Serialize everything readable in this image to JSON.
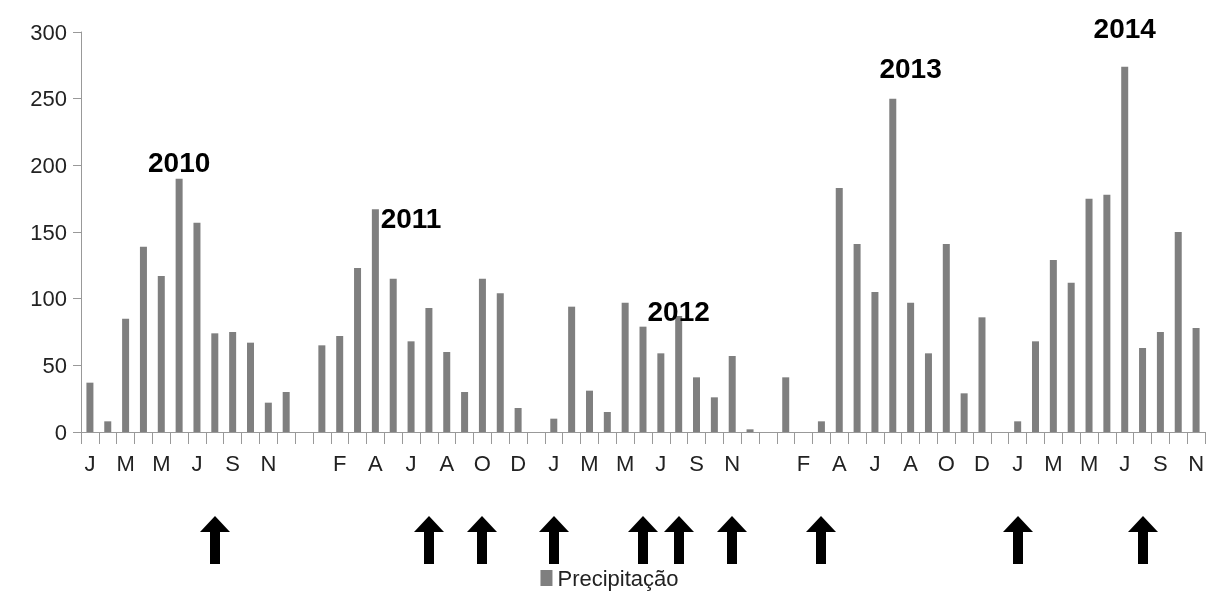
{
  "chart_data": {
    "type": "bar",
    "categories": [
      "J",
      null,
      "M",
      null,
      "M",
      null,
      "J",
      null,
      "S",
      null,
      "N",
      null,
      null,
      null,
      "F",
      null,
      "A",
      null,
      "J",
      null,
      "A",
      null,
      "O",
      null,
      "D",
      null,
      "J",
      null,
      "M",
      null,
      "M",
      null,
      "J",
      null,
      "S",
      null,
      "N",
      null,
      null,
      null,
      "F",
      null,
      "A",
      null,
      "J",
      null,
      "A",
      null,
      "O",
      null,
      "D",
      null,
      "J",
      null,
      "M",
      null,
      "M",
      null,
      "J",
      null,
      "S",
      null,
      "N"
    ],
    "series": [
      {
        "name": "Precipitação",
        "color": "#7f7f7f",
        "values": [
          37,
          8,
          85,
          139,
          117,
          190,
          157,
          74,
          75,
          67,
          22,
          30,
          0,
          65,
          72,
          123,
          167,
          115,
          68,
          93,
          60,
          30,
          115,
          104,
          18,
          0,
          10,
          94,
          31,
          15,
          97,
          79,
          59,
          87,
          41,
          26,
          57,
          2,
          0,
          41,
          0,
          8,
          183,
          141,
          105,
          250,
          97,
          59,
          141,
          29,
          86,
          0,
          8,
          68,
          129,
          112,
          175,
          178,
          274,
          63,
          75,
          150,
          78
        ]
      }
    ],
    "ylim": [
      0,
      300
    ],
    "yticks": [
      0,
      50,
      100,
      150,
      200,
      250,
      300
    ],
    "grid": false,
    "legend": "bottom",
    "annotations": [
      "2010",
      "2011",
      "2012",
      "2013",
      "2014"
    ]
  }
}
